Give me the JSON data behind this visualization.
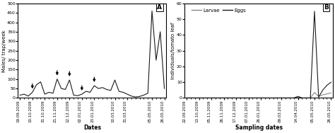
{
  "panel_A": {
    "dates_labels": [
      "19.09.2009",
      "10.10.2009",
      "31.10.2009",
      "21.11.2009",
      "12.12.2009",
      "02.01.2010",
      "23.01.2010",
      "10.03.2010",
      "31.03.2010",
      "05.05.2010",
      "26.05.2010"
    ],
    "x_values": [
      0,
      3,
      6,
      9,
      12,
      15,
      18,
      23,
      26,
      32,
      35
    ],
    "y_values": [
      15,
      30,
      20,
      100,
      95,
      20,
      65,
      95,
      20,
      460,
      50
    ],
    "extra_x": [
      1,
      2,
      4,
      5,
      7,
      8,
      10,
      11,
      13,
      14,
      16,
      17,
      19,
      20,
      21,
      22,
      24,
      25,
      27,
      28,
      29,
      30,
      31,
      33,
      34
    ],
    "extra_y": [
      20,
      10,
      70,
      85,
      30,
      25,
      50,
      45,
      15,
      12,
      35,
      30,
      50,
      55,
      45,
      40,
      35,
      30,
      10,
      5,
      8,
      15,
      25,
      200,
      350
    ],
    "arrows_data": [
      {
        "xi": 3,
        "ybase": 30,
        "ytip": 30
      },
      {
        "xi": 9,
        "ybase": 100,
        "ytip": 100
      },
      {
        "xi": 12,
        "ybase": 95,
        "ytip": 95
      },
      {
        "xi": 15,
        "ybase": 20,
        "ytip": 20
      },
      {
        "xi": 18,
        "ybase": 65,
        "ytip": 65
      }
    ],
    "ylabel": "Males/ trap/week",
    "xlabel": "Dates",
    "ylim": [
      0,
      500
    ],
    "yticks": [
      0,
      50,
      100,
      150,
      200,
      250,
      300,
      350,
      400,
      450,
      500
    ],
    "label": "A",
    "line_color": "#1a1a1a",
    "background": "#ffffff",
    "total_points": 36
  },
  "panel_B": {
    "dates_labels": [
      "22.09.2009",
      "13.10.2009",
      "05.11.2009",
      "26.11.2009",
      "17.12.2009",
      "07.01.2010",
      "26.01.2010",
      "09.03.2010",
      "14.04.2010",
      "05.05.2010",
      "26.05.2010"
    ],
    "x_values": [
      0,
      3,
      6,
      9,
      12,
      15,
      18,
      23,
      27,
      31,
      35
    ],
    "larvae": [
      0,
      0,
      0,
      0,
      0,
      0,
      0,
      0,
      0.3,
      3.5,
      3.2
    ],
    "eggs": [
      0,
      0,
      0,
      0,
      0,
      0,
      0,
      0,
      1.0,
      55,
      10
    ],
    "extra_x": [
      1,
      2,
      4,
      5,
      7,
      8,
      10,
      11,
      13,
      14,
      16,
      17,
      19,
      20,
      21,
      22,
      24,
      25,
      26,
      28,
      29,
      30,
      32,
      33,
      34
    ],
    "extra_larvae": [
      0,
      0,
      0,
      0,
      0,
      0,
      0,
      0,
      0,
      0,
      0,
      0,
      0,
      0,
      0,
      0,
      0,
      0,
      0,
      0,
      0,
      0,
      1.0,
      2.0,
      2.5
    ],
    "extra_eggs": [
      0,
      0,
      0,
      0,
      0,
      0,
      0,
      0,
      0,
      0,
      0,
      0,
      0,
      0,
      0,
      0,
      0,
      0,
      0,
      0,
      0,
      0,
      0.5,
      5,
      8
    ],
    "ylabel": "Individuals/tomato leaf",
    "xlabel": "Sampling dates",
    "ylim": [
      0,
      60
    ],
    "yticks": [
      0,
      10,
      20,
      30,
      40,
      50,
      60
    ],
    "label": "B",
    "larvae_color": "#888888",
    "eggs_color": "#1a1a1a",
    "background": "#ffffff",
    "total_points": 36
  }
}
